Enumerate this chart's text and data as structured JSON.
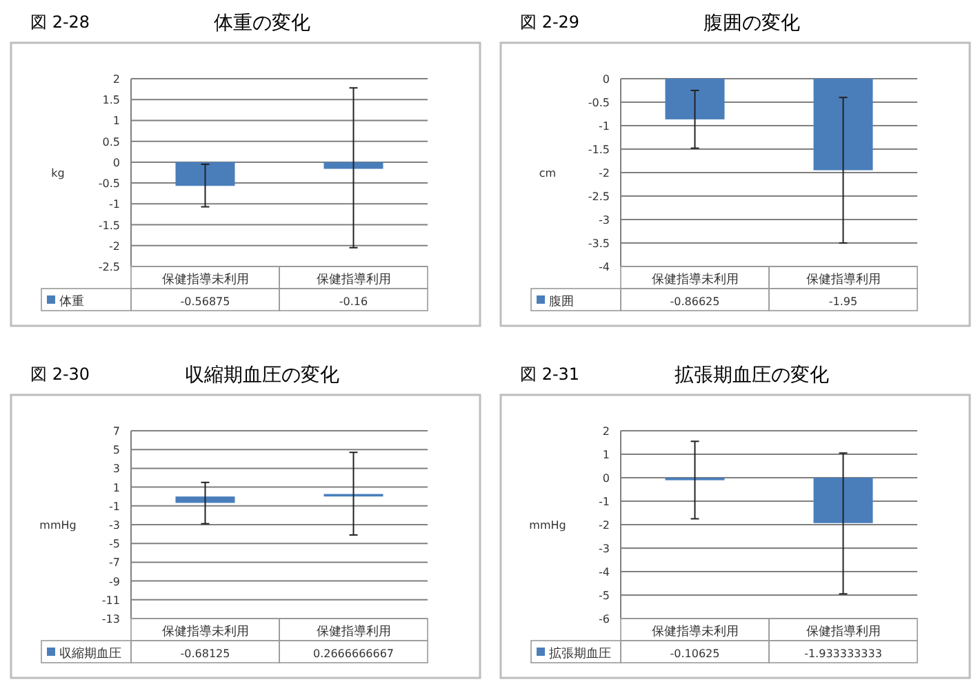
{
  "chart_data": [
    {
      "type": "bar",
      "subtitle": "図 2-28",
      "title": "体重の変化",
      "ylabel": "kg",
      "categories": [
        "保健指導未利用",
        "保健指導利用"
      ],
      "series": [
        {
          "name": "体重",
          "color": "#4a7ebb",
          "values": [
            -0.56875,
            -0.16
          ],
          "errors": [
            [
              -1.07,
              -0.05
            ],
            [
              -2.05,
              1.78
            ]
          ]
        }
      ],
      "ylim": [
        -2.5,
        2
      ],
      "yticks": [
        2,
        1.5,
        1,
        0.5,
        0,
        -0.5,
        -1,
        -1.5,
        -2,
        -2.5
      ],
      "grid": "y",
      "legend": "bottom",
      "data_labels": true
    },
    {
      "type": "bar",
      "subtitle": "図 2-29",
      "title": "腹囲の変化",
      "ylabel": "cm",
      "categories": [
        "保健指導未利用",
        "保健指導利用"
      ],
      "series": [
        {
          "name": "腹囲",
          "color": "#4a7ebb",
          "values": [
            -0.86625,
            -1.95
          ],
          "errors": [
            [
              -1.48,
              -0.25
            ],
            [
              -3.5,
              -0.4
            ]
          ]
        }
      ],
      "ylim": [
        -4,
        0
      ],
      "yticks": [
        0,
        -0.5,
        -1,
        -1.5,
        -2,
        -2.5,
        -3,
        -3.5,
        -4
      ],
      "grid": "y",
      "legend": "bottom",
      "data_labels": true
    },
    {
      "type": "bar",
      "subtitle": "図 2-30",
      "title": "収縮期血圧の変化",
      "ylabel": "mmHg",
      "categories": [
        "保健指導未利用",
        "保健指導利用"
      ],
      "series": [
        {
          "name": "収縮期血圧",
          "color": "#4a7ebb",
          "values": [
            -0.68125,
            0.2666666667
          ],
          "errors": [
            [
              -2.9,
              1.5
            ],
            [
              -4.1,
              4.7
            ]
          ]
        }
      ],
      "ylim": [
        -13,
        7
      ],
      "yticks": [
        7,
        5,
        3,
        1,
        -1,
        -3,
        -5,
        -7,
        -9,
        -11,
        -13
      ],
      "grid": "y",
      "legend": "bottom",
      "data_labels": true
    },
    {
      "type": "bar",
      "subtitle": "図 2-31",
      "title": "拡張期血圧の変化",
      "ylabel": "mmHg",
      "categories": [
        "保健指導未利用",
        "保健指導利用"
      ],
      "series": [
        {
          "name": "拡張期血圧",
          "color": "#4a7ebb",
          "values": [
            -0.10625,
            -1.933333333
          ],
          "errors": [
            [
              -1.75,
              1.55
            ],
            [
              -4.95,
              1.05
            ]
          ]
        }
      ],
      "ylim": [
        -6,
        2
      ],
      "yticks": [
        2,
        1,
        0,
        -1,
        -2,
        -3,
        -4,
        -5,
        -6
      ],
      "grid": "y",
      "legend": "bottom",
      "data_labels": true
    }
  ]
}
